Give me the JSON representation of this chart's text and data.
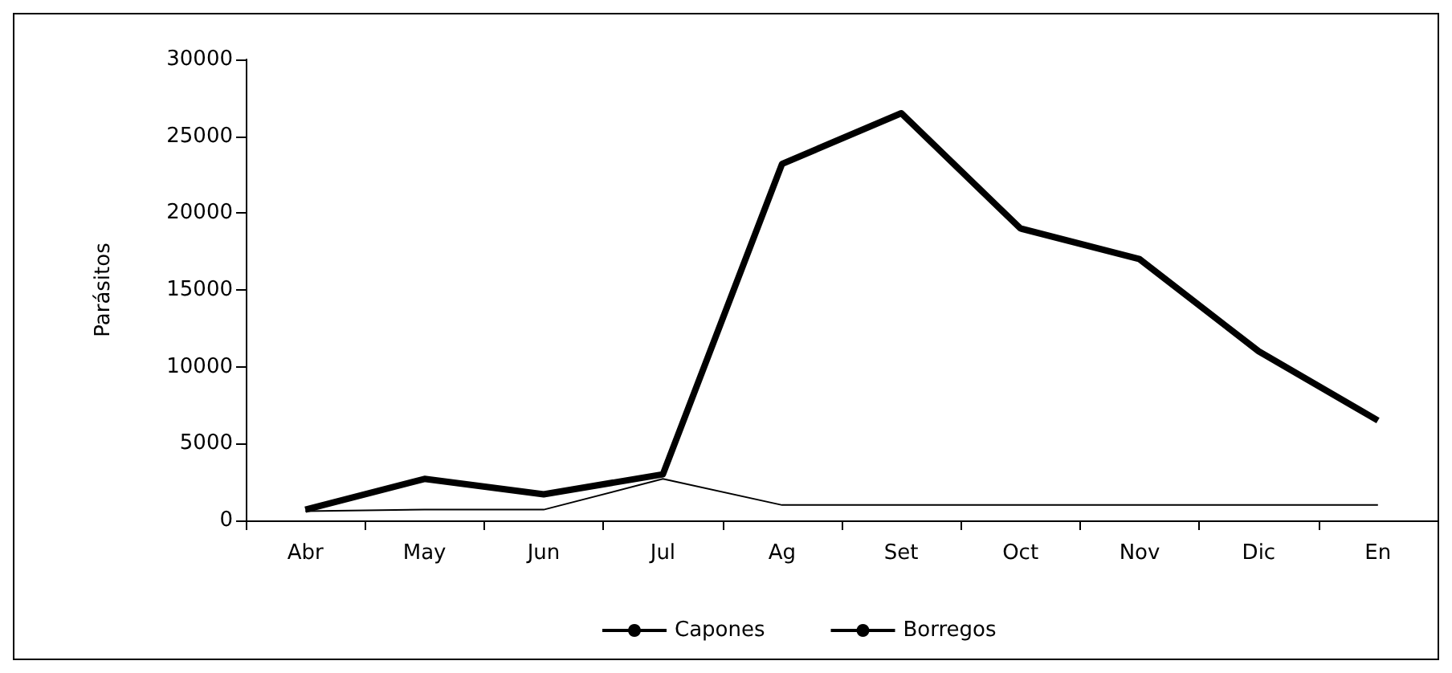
{
  "chart_data": {
    "type": "line",
    "ylabel": "Parásitos",
    "categories": [
      "Abr",
      "May",
      "Jun",
      "Jul",
      "Ag",
      "Set",
      "Oct",
      "Nov",
      "Dic",
      "En"
    ],
    "series": [
      {
        "name": "Capones",
        "color": "#000000",
        "values": [
          600,
          700,
          700,
          2700,
          1000,
          1000,
          1000,
          1000,
          1000,
          1000
        ]
      },
      {
        "name": "Borregos",
        "color": "#000000",
        "values": [
          700,
          2700,
          1700,
          3000,
          23200,
          26500,
          19000,
          17000,
          11000,
          6500
        ]
      }
    ],
    "ylim": [
      0,
      30000
    ],
    "yticks": [
      0,
      5000,
      10000,
      15000,
      20000,
      25000,
      30000
    ],
    "grid": false,
    "legend": "bottom",
    "marker": "none"
  }
}
